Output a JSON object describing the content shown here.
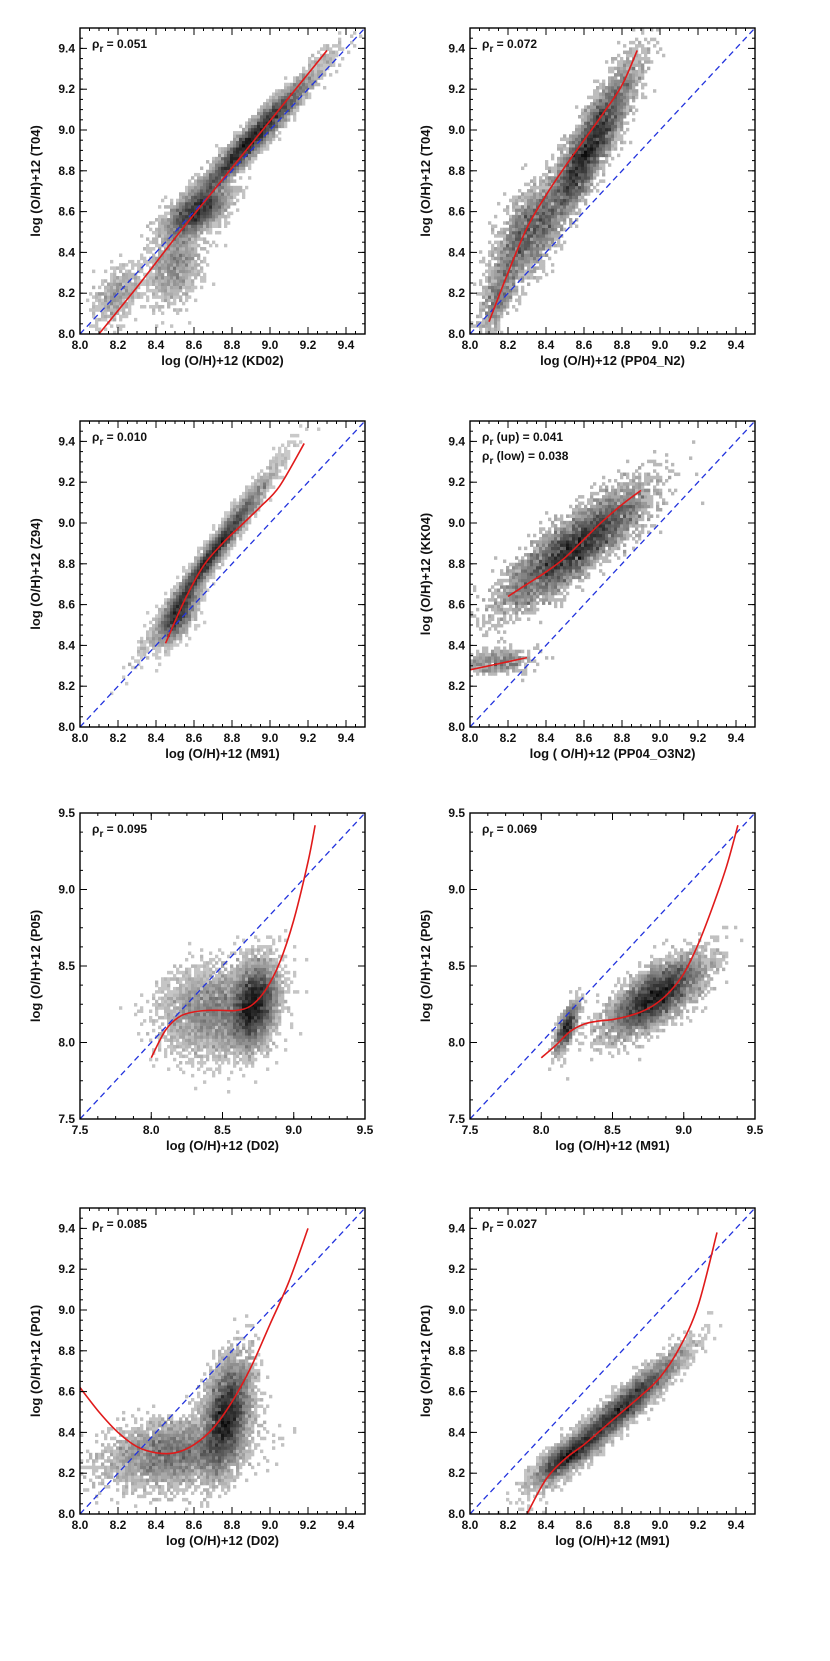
{
  "colors": {
    "identity": "#2233dd",
    "fit": "#e01a1a",
    "density": "#1a1a1a",
    "axes": "#000000"
  },
  "chart_data": [
    {
      "type": "scatter",
      "xlabel": "log (O/H)+12 (KD02)",
      "ylabel": "log (O/H)+12 (T04)",
      "xlim": [
        8.0,
        9.5
      ],
      "ylim": [
        8.0,
        9.5
      ],
      "xticks": [
        "8.0",
        "8.2",
        "8.4",
        "8.6",
        "8.8",
        "9.0",
        "9.2",
        "9.4"
      ],
      "yticks": [
        "8.0",
        "8.2",
        "8.4",
        "8.6",
        "8.8",
        "9.0",
        "9.2",
        "9.4"
      ],
      "annotations": [
        "ρ_r = 0.051"
      ],
      "fit_curve": {
        "x": [
          8.1,
          8.3,
          8.5,
          8.7,
          8.9,
          9.1,
          9.3
        ],
        "y": [
          8.0,
          8.23,
          8.47,
          8.7,
          8.93,
          9.16,
          9.39
        ]
      },
      "identity_line": true,
      "density": [
        {
          "x": 8.9,
          "y": 8.95,
          "sx": 0.16,
          "sy": 0.16,
          "rho": 0.97,
          "w": 1.0
        },
        {
          "x": 8.62,
          "y": 8.6,
          "sx": 0.08,
          "sy": 0.06,
          "rho": 0.6,
          "w": 0.5
        },
        {
          "x": 8.5,
          "y": 8.35,
          "sx": 0.07,
          "sy": 0.1,
          "rho": 0.3,
          "w": 0.2
        },
        {
          "x": 8.2,
          "y": 8.2,
          "sx": 0.06,
          "sy": 0.07,
          "rho": 0.5,
          "w": 0.08
        }
      ]
    },
    {
      "type": "scatter",
      "xlabel": "log (O/H)+12 (PP04_N2)",
      "ylabel": "log (O/H)+12 (T04)",
      "xlim": [
        8.0,
        9.5
      ],
      "ylim": [
        8.0,
        9.5
      ],
      "xticks": [
        "8.0",
        "8.2",
        "8.4",
        "8.6",
        "8.8",
        "9.0",
        "9.2",
        "9.4"
      ],
      "yticks": [
        "8.0",
        "8.2",
        "8.4",
        "8.6",
        "8.8",
        "9.0",
        "9.2",
        "9.4"
      ],
      "annotations": [
        "ρ_r = 0.072"
      ],
      "fit_curve": {
        "x": [
          8.1,
          8.2,
          8.3,
          8.4,
          8.5,
          8.6,
          8.7,
          8.8,
          8.88
        ],
        "y": [
          8.06,
          8.3,
          8.52,
          8.68,
          8.82,
          8.95,
          9.08,
          9.22,
          9.39
        ]
      },
      "identity_line": true,
      "density": [
        {
          "x": 8.62,
          "y": 8.9,
          "sx": 0.12,
          "sy": 0.2,
          "rho": 0.9,
          "w": 1.0
        },
        {
          "x": 8.3,
          "y": 8.5,
          "sx": 0.08,
          "sy": 0.12,
          "rho": 0.6,
          "w": 0.35
        },
        {
          "x": 8.15,
          "y": 8.2,
          "sx": 0.05,
          "sy": 0.1,
          "rho": 0.6,
          "w": 0.12
        }
      ]
    },
    {
      "type": "scatter",
      "xlabel": "log (O/H)+12 (M91)",
      "ylabel": "log (O/H)+12 (Z94)",
      "xlim": [
        8.0,
        9.5
      ],
      "ylim": [
        8.0,
        9.5
      ],
      "xticks": [
        "8.0",
        "8.2",
        "8.4",
        "8.6",
        "8.8",
        "9.0",
        "9.2",
        "9.4"
      ],
      "yticks": [
        "8.0",
        "8.2",
        "8.4",
        "8.6",
        "8.8",
        "9.0",
        "9.2",
        "9.4"
      ],
      "annotations": [
        "ρ_r = 0.010"
      ],
      "fit_curve": {
        "x": [
          8.45,
          8.55,
          8.65,
          8.75,
          8.85,
          8.95,
          9.05,
          9.18
        ],
        "y": [
          8.41,
          8.62,
          8.79,
          8.9,
          8.99,
          9.08,
          9.18,
          9.39
        ]
      },
      "identity_line": true,
      "density": [
        {
          "x": 8.7,
          "y": 8.85,
          "sx": 0.14,
          "sy": 0.18,
          "rho": 0.98,
          "w": 1.0
        },
        {
          "x": 8.52,
          "y": 8.55,
          "sx": 0.05,
          "sy": 0.07,
          "rho": 0.7,
          "w": 0.4
        }
      ]
    },
    {
      "type": "scatter",
      "xlabel": "log ( O/H)+12 (PP04_O3N2)",
      "ylabel": "log (O/H)+12 (KK04)",
      "xlim": [
        8.0,
        9.5
      ],
      "ylim": [
        8.0,
        9.5
      ],
      "xticks": [
        "8.0",
        "8.2",
        "8.4",
        "8.6",
        "8.8",
        "9.0",
        "9.2",
        "9.4"
      ],
      "yticks": [
        "8.0",
        "8.2",
        "8.4",
        "8.6",
        "8.8",
        "9.0",
        "9.2",
        "9.4"
      ],
      "annotations": [
        "ρ_r (up) =   0.041",
        "ρ_r (low) = 0.038"
      ],
      "fit_curve": {
        "x": [
          8.2,
          8.3,
          8.4,
          8.5,
          8.6,
          8.7,
          8.8,
          8.9
        ],
        "y": [
          8.64,
          8.7,
          8.76,
          8.83,
          8.92,
          9.01,
          9.09,
          9.16
        ]
      },
      "fit_curve_lower": {
        "x": [
          8.0,
          8.3
        ],
        "y": [
          8.28,
          8.34
        ]
      },
      "identity_line": true,
      "density": [
        {
          "x": 8.55,
          "y": 8.88,
          "sx": 0.18,
          "sy": 0.14,
          "rho": 0.85,
          "w": 1.0
        },
        {
          "x": 8.15,
          "y": 8.32,
          "sx": 0.08,
          "sy": 0.03,
          "rho": 0.2,
          "w": 0.06
        }
      ]
    },
    {
      "type": "scatter",
      "xlabel": "log (O/H)+12 (D02)",
      "ylabel": "log (O/H)+12 (P05)",
      "xlim": [
        7.5,
        9.5
      ],
      "ylim": [
        7.5,
        9.5
      ],
      "xticks": [
        "7.5",
        "8.0",
        "8.5",
        "9.0",
        "9.5"
      ],
      "yticks": [
        "7.5",
        "8.0",
        "8.5",
        "9.0",
        "9.5"
      ],
      "annotations": [
        "ρ_r = 0.095"
      ],
      "fit_curve": {
        "x": [
          8.0,
          8.1,
          8.2,
          8.3,
          8.4,
          8.5,
          8.6,
          8.7,
          8.8,
          8.9,
          9.0,
          9.1,
          9.15
        ],
        "y": [
          7.9,
          8.08,
          8.17,
          8.2,
          8.21,
          8.21,
          8.21,
          8.24,
          8.34,
          8.52,
          8.8,
          9.18,
          9.42
        ]
      },
      "identity_line": true,
      "density": [
        {
          "x": 8.72,
          "y": 8.25,
          "sx": 0.08,
          "sy": 0.13,
          "rho": 0.3,
          "w": 1.0
        },
        {
          "x": 8.45,
          "y": 8.2,
          "sx": 0.18,
          "sy": 0.14,
          "rho": 0.1,
          "w": 0.55
        }
      ]
    },
    {
      "type": "scatter",
      "xlabel": "log (O/H)+12 (M91)",
      "ylabel": "log (O/H)+12 (P05)",
      "xlim": [
        7.5,
        9.5
      ],
      "ylim": [
        7.5,
        9.5
      ],
      "xticks": [
        "7.5",
        "8.0",
        "8.5",
        "9.0",
        "9.5"
      ],
      "yticks": [
        "7.5",
        "8.0",
        "8.5",
        "9.0",
        "9.5"
      ],
      "annotations": [
        "ρ_r = 0.069"
      ],
      "fit_curve": {
        "x": [
          8.0,
          8.1,
          8.2,
          8.3,
          8.4,
          8.5,
          8.6,
          8.7,
          8.8,
          8.9,
          9.0,
          9.1,
          9.2,
          9.3,
          9.38
        ],
        "y": [
          7.9,
          7.98,
          8.07,
          8.12,
          8.14,
          8.15,
          8.17,
          8.2,
          8.25,
          8.33,
          8.45,
          8.64,
          8.88,
          9.15,
          9.42
        ]
      },
      "identity_line": true,
      "density": [
        {
          "x": 8.8,
          "y": 8.3,
          "sx": 0.16,
          "sy": 0.12,
          "rho": 0.7,
          "w": 1.0
        },
        {
          "x": 8.18,
          "y": 8.1,
          "sx": 0.04,
          "sy": 0.08,
          "rho": 0.7,
          "w": 0.15
        }
      ]
    },
    {
      "type": "scatter",
      "xlabel": "log (O/H)+12 (D02)",
      "ylabel": "log (O/H)+12 (P01)",
      "xlim": [
        8.0,
        9.5
      ],
      "ylim": [
        8.0,
        9.5
      ],
      "xticks": [
        "8.0",
        "8.2",
        "8.4",
        "8.6",
        "8.8",
        "9.0",
        "9.2",
        "9.4"
      ],
      "yticks": [
        "8.0",
        "8.2",
        "8.4",
        "8.6",
        "8.8",
        "9.0",
        "9.2",
        "9.4"
      ],
      "annotations": [
        "ρ_r = 0.085"
      ],
      "fit_curve": {
        "x": [
          8.0,
          8.1,
          8.2,
          8.3,
          8.4,
          8.5,
          8.6,
          8.7,
          8.8,
          8.9,
          9.0,
          9.1,
          9.2
        ],
        "y": [
          8.62,
          8.5,
          8.4,
          8.33,
          8.3,
          8.3,
          8.34,
          8.42,
          8.55,
          8.72,
          8.93,
          9.14,
          9.4
        ]
      },
      "identity_line": true,
      "density": [
        {
          "x": 8.77,
          "y": 8.48,
          "sx": 0.06,
          "sy": 0.13,
          "rho": 0.4,
          "w": 1.0
        },
        {
          "x": 8.5,
          "y": 8.3,
          "sx": 0.18,
          "sy": 0.08,
          "rho": 0.3,
          "w": 0.6
        }
      ]
    },
    {
      "type": "scatter",
      "xlabel": "log (O/H)+12 (M91)",
      "ylabel": "log (O/H)+12 (P01)",
      "xlim": [
        8.0,
        9.5
      ],
      "ylim": [
        8.0,
        9.5
      ],
      "xticks": [
        "8.0",
        "8.2",
        "8.4",
        "8.6",
        "8.8",
        "9.0",
        "9.2",
        "9.4"
      ],
      "yticks": [
        "8.0",
        "8.2",
        "8.4",
        "8.6",
        "8.8",
        "9.0",
        "9.2",
        "9.4"
      ],
      "annotations": [
        "ρ_r = 0.027"
      ],
      "fit_curve": {
        "x": [
          8.3,
          8.4,
          8.5,
          8.6,
          8.7,
          8.8,
          8.9,
          9.0,
          9.1,
          9.2,
          9.3
        ],
        "y": [
          8.0,
          8.17,
          8.27,
          8.34,
          8.42,
          8.5,
          8.58,
          8.67,
          8.81,
          9.02,
          9.38
        ]
      },
      "identity_line": true,
      "density": [
        {
          "x": 8.78,
          "y": 8.5,
          "sx": 0.16,
          "sy": 0.14,
          "rho": 0.95,
          "w": 1.0
        },
        {
          "x": 8.5,
          "y": 8.28,
          "sx": 0.08,
          "sy": 0.06,
          "rho": 0.8,
          "w": 0.4
        }
      ]
    }
  ]
}
